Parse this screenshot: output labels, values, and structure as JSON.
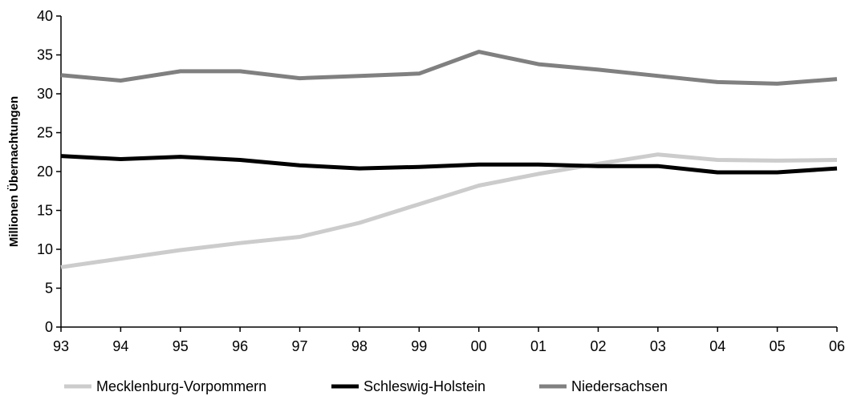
{
  "chart_data": {
    "type": "line",
    "title": "",
    "xlabel": "",
    "ylabel": "Millionen Übernachtungen",
    "ylim": [
      0,
      40
    ],
    "yticks": [
      0,
      5,
      10,
      15,
      20,
      25,
      30,
      35,
      40
    ],
    "categories": [
      "93",
      "94",
      "95",
      "96",
      "97",
      "98",
      "99",
      "00",
      "01",
      "02",
      "03",
      "04",
      "05",
      "06"
    ],
    "grid": false,
    "legend_position": "bottom",
    "series": [
      {
        "name": "Mecklenburg-Vorpommern",
        "color": "#cccccc",
        "values": [
          7.7,
          8.8,
          9.9,
          10.8,
          11.6,
          13.4,
          15.8,
          18.2,
          19.7,
          21.0,
          22.2,
          21.5,
          21.4,
          21.5
        ]
      },
      {
        "name": "Schleswig-Holstein",
        "color": "#000000",
        "values": [
          22.0,
          21.6,
          21.9,
          21.5,
          20.8,
          20.4,
          20.6,
          20.9,
          20.9,
          20.7,
          20.7,
          19.9,
          19.9,
          20.4
        ]
      },
      {
        "name": "Niedersachsen",
        "color": "#808080",
        "values": [
          32.4,
          31.7,
          32.9,
          32.9,
          32.0,
          32.3,
          32.6,
          35.4,
          33.8,
          33.1,
          32.3,
          31.5,
          31.3,
          31.9
        ]
      }
    ]
  }
}
